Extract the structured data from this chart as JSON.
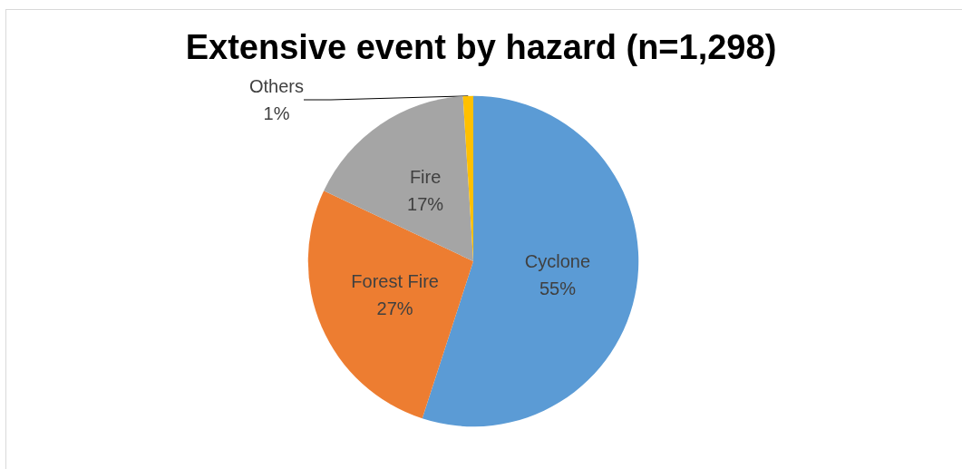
{
  "chart_data": {
    "type": "pie",
    "title": "Extensive event by hazard (n=1,298)",
    "categories": [
      "Cyclone",
      "Forest Fire",
      "Fire",
      "Others"
    ],
    "values": [
      55,
      27,
      17,
      1
    ],
    "colors": [
      "#5b9bd5",
      "#ed7d31",
      "#a5a5a5",
      "#ffc000"
    ],
    "value_labels": [
      "55%",
      "27%",
      "17%",
      "1%"
    ],
    "legend": false
  }
}
